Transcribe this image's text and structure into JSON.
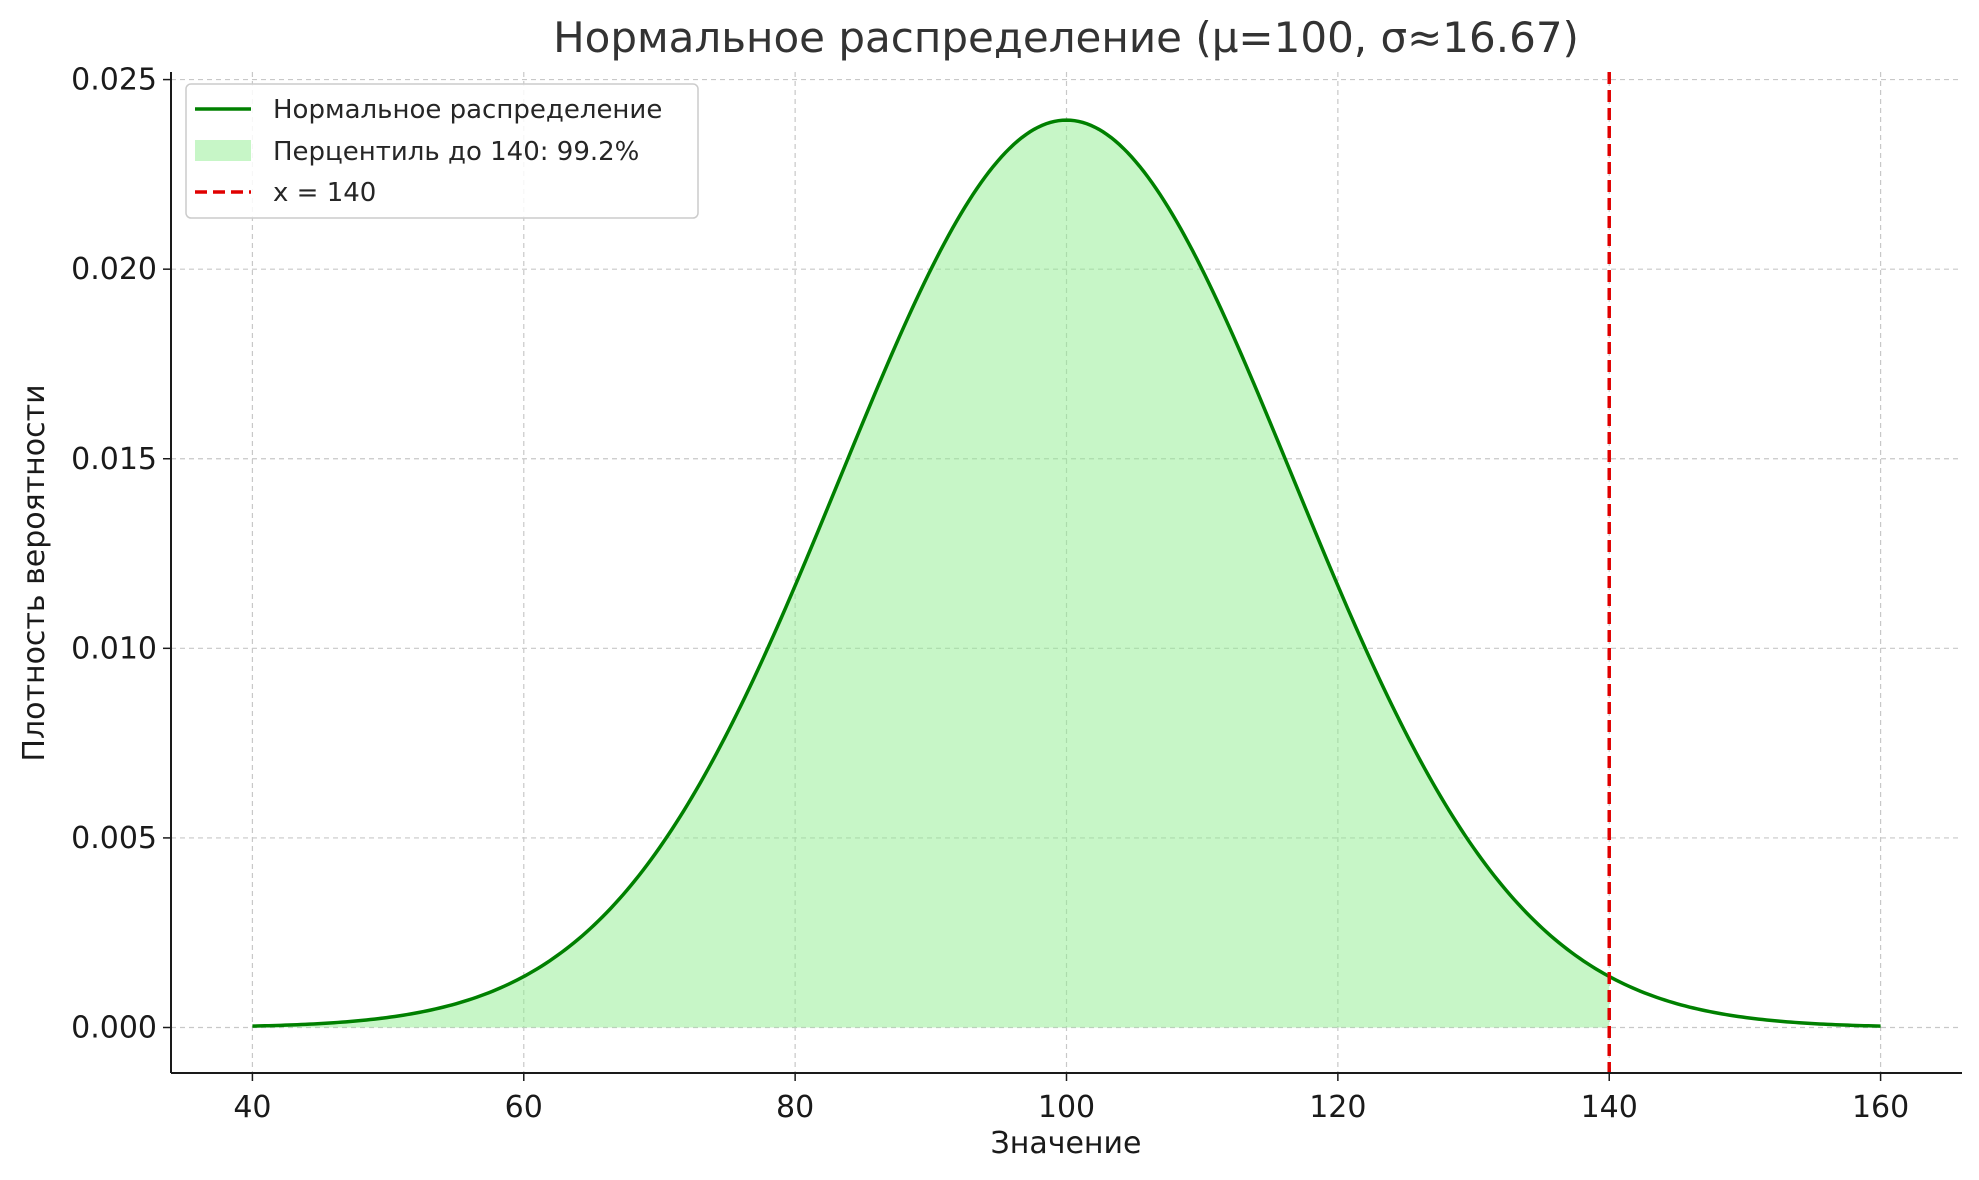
{
  "chart_data": {
    "type": "line",
    "title": "Нормальное распределение (μ=100, σ≈16.67)",
    "xlabel": "Значение",
    "ylabel": "Плотность вероятности",
    "xlim": [
      34,
      166
    ],
    "ylim": [
      -0.0012,
      0.0252
    ],
    "x_ticks": [
      40,
      60,
      80,
      100,
      120,
      140,
      160
    ],
    "x_tick_labels": [
      "40",
      "60",
      "80",
      "100",
      "120",
      "140",
      "160"
    ],
    "y_ticks": [
      0.0,
      0.005,
      0.01,
      0.015,
      0.02,
      0.025
    ],
    "y_tick_labels": [
      "0.000",
      "0.005",
      "0.010",
      "0.015",
      "0.020",
      "0.025"
    ],
    "grid": true,
    "legend_position": "top-left",
    "distribution": {
      "mean": 100,
      "std": 16.67,
      "x_start": 40,
      "x_end": 160
    },
    "series": [
      {
        "name": "Нормальное распределение",
        "kind": "line",
        "color": "#008000"
      },
      {
        "name": "Перцентиль до 140: 99.2%",
        "kind": "area",
        "x_start": 40,
        "x_end": 140,
        "color": "#90ee90"
      },
      {
        "name": "x = 140",
        "kind": "vline",
        "x": 140,
        "color": "#e00000"
      }
    ]
  }
}
